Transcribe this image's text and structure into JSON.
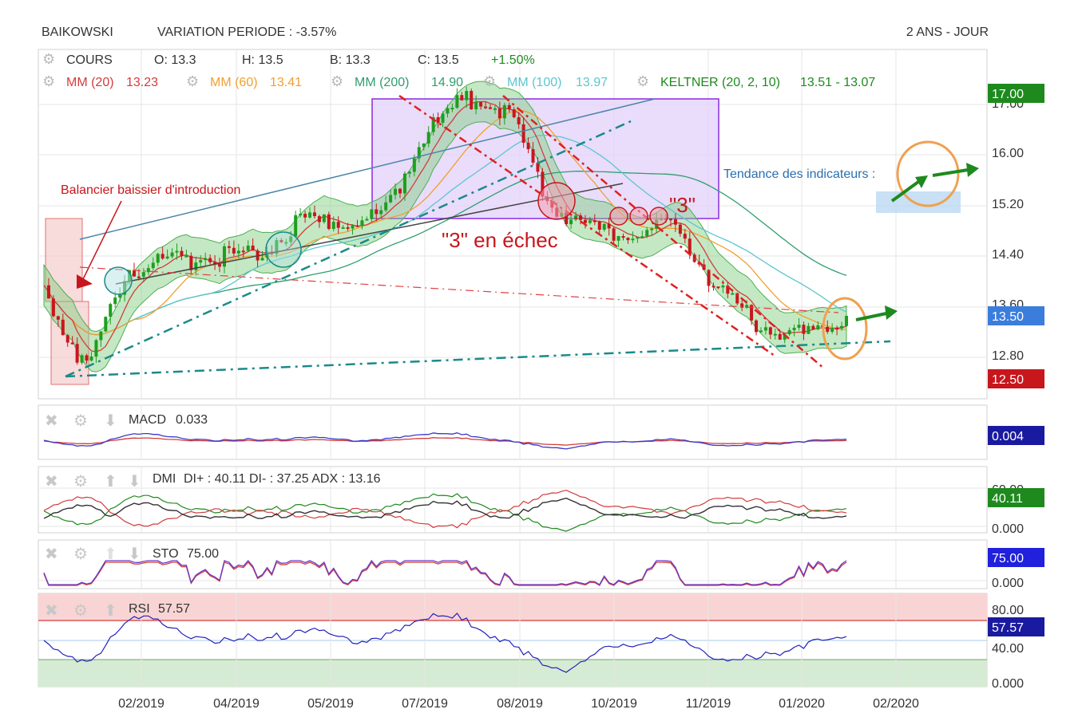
{
  "header": {
    "symbol": "BAIKOWSKI",
    "variation": "VARIATION PERIODE : -3.57%",
    "period": "2 ANS - JOUR"
  },
  "legend": {
    "cours": "COURS",
    "open": "O: 13.3",
    "high": "H: 13.5",
    "low": "B: 13.3",
    "close": "C: 13.5",
    "change": "+1.50%",
    "mm20_label": "MM (20)",
    "mm20_val": "13.23",
    "mm60_label": "MM (60)",
    "mm60_val": "13.41",
    "mm200_label": "MM (200)",
    "mm200_val": "14.90",
    "mm100_label": "MM (100)",
    "mm100_val": "13.97",
    "keltner_label": "KELTNER (20, 2, 10)",
    "keltner_val": "13.51 - 13.07"
  },
  "annotations": {
    "balancier": "Balancier baissier d'introduction",
    "trois_echec": "\"3\" en échec",
    "trois": "\"3\"",
    "tendance": "Tendance des indicateurs :"
  },
  "colors": {
    "up": "#1e9e1e",
    "down": "#c8161d",
    "mm20": "#d23c3c",
    "mm60": "#f0a030",
    "mm200": "#2f9e6e",
    "mm100": "#5cc6cf",
    "keltner": "#4caf50",
    "teal": "#1a8a8a",
    "purple_box": "#8a2be2",
    "orange": "#f0a050"
  },
  "badges": {
    "price_high": "17.00",
    "price_last": "13.50",
    "price_low": "12.50",
    "macd": "0.004",
    "dmi": "40.11",
    "sto": "75.00",
    "rsi": "57.57"
  },
  "indicators": {
    "macd_label": "MACD",
    "macd_val": "0.033",
    "dmi_label": "DMI",
    "dmi_val": "DI+ : 40.11 DI- : 37.25 ADX : 13.16",
    "sto_label": "STO",
    "sto_val": "75.00",
    "rsi_label": "RSI",
    "rsi_val": "57.57"
  },
  "chart_data": {
    "type": "line",
    "price_axis": [
      "17.00",
      "16.00",
      "15.20",
      "14.40",
      "13.60",
      "12.80"
    ],
    "dmi_axis": [
      "60.00",
      "0.000"
    ],
    "sto_axis": [
      "0.000"
    ],
    "rsi_axis": [
      "80.00",
      "40.00",
      "0.000"
    ],
    "x_ticks": [
      "02/2019",
      "04/2019",
      "05/2019",
      "07/2019",
      "08/2019",
      "10/2019",
      "11/2019",
      "01/2020",
      "02/2020"
    ],
    "close_series": [
      {
        "x": "01/2019",
        "y": 13.9
      },
      {
        "x": "01/2019",
        "y": 12.6
      },
      {
        "x": "01/2019",
        "y": 14.2
      },
      {
        "x": "02/2019",
        "y": 14.3
      },
      {
        "x": "03/2019",
        "y": 14.4
      },
      {
        "x": "04/2019",
        "y": 14.4
      },
      {
        "x": "04/2019",
        "y": 14.9
      },
      {
        "x": "05/2019",
        "y": 14.95
      },
      {
        "x": "06/2019",
        "y": 15.0
      },
      {
        "x": "06/2019",
        "y": 16.3
      },
      {
        "x": "07/2019",
        "y": 16.9
      },
      {
        "x": "08/2019",
        "y": 16.7
      },
      {
        "x": "08/2019",
        "y": 15.2
      },
      {
        "x": "09/2019",
        "y": 14.8
      },
      {
        "x": "10/2019",
        "y": 14.7
      },
      {
        "x": "10/2019",
        "y": 14.9
      },
      {
        "x": "11/2019",
        "y": 13.8
      },
      {
        "x": "12/2019",
        "y": 13.3
      },
      {
        "x": "01/2020",
        "y": 13.15
      },
      {
        "x": "01/2020",
        "y": 13.5
      }
    ],
    "ylim": [
      12.2,
      17.2
    ]
  }
}
